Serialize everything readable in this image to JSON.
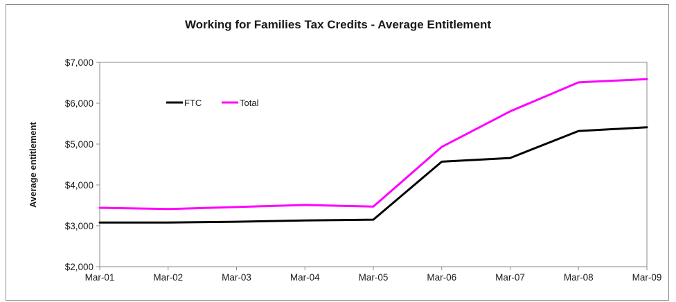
{
  "chart_data": {
    "type": "line",
    "title": "Working for Families Tax Credits - Average Entitlement",
    "xlabel": "",
    "ylabel": "Average entitlement",
    "categories": [
      "Mar-01",
      "Mar-02",
      "Mar-03",
      "Mar-04",
      "Mar-05",
      "Mar-06",
      "Mar-07",
      "Mar-08",
      "Mar-09"
    ],
    "ylim": [
      2000,
      7000
    ],
    "yticks": [
      2000,
      3000,
      4000,
      5000,
      6000,
      7000
    ],
    "ytick_labels": [
      "$2,000",
      "$3,000",
      "$4,000",
      "$5,000",
      "$6,000",
      "$7,000"
    ],
    "grid": false,
    "legend_position": "top-left",
    "series": [
      {
        "name": "FTC",
        "color": "#000000",
        "values": [
          3080,
          3080,
          3100,
          3130,
          3150,
          4570,
          4660,
          5320,
          5410
        ]
      },
      {
        "name": "Total",
        "color": "#ff00ff",
        "values": [
          3440,
          3410,
          3460,
          3510,
          3470,
          4930,
          5800,
          6510,
          6590
        ]
      }
    ]
  }
}
